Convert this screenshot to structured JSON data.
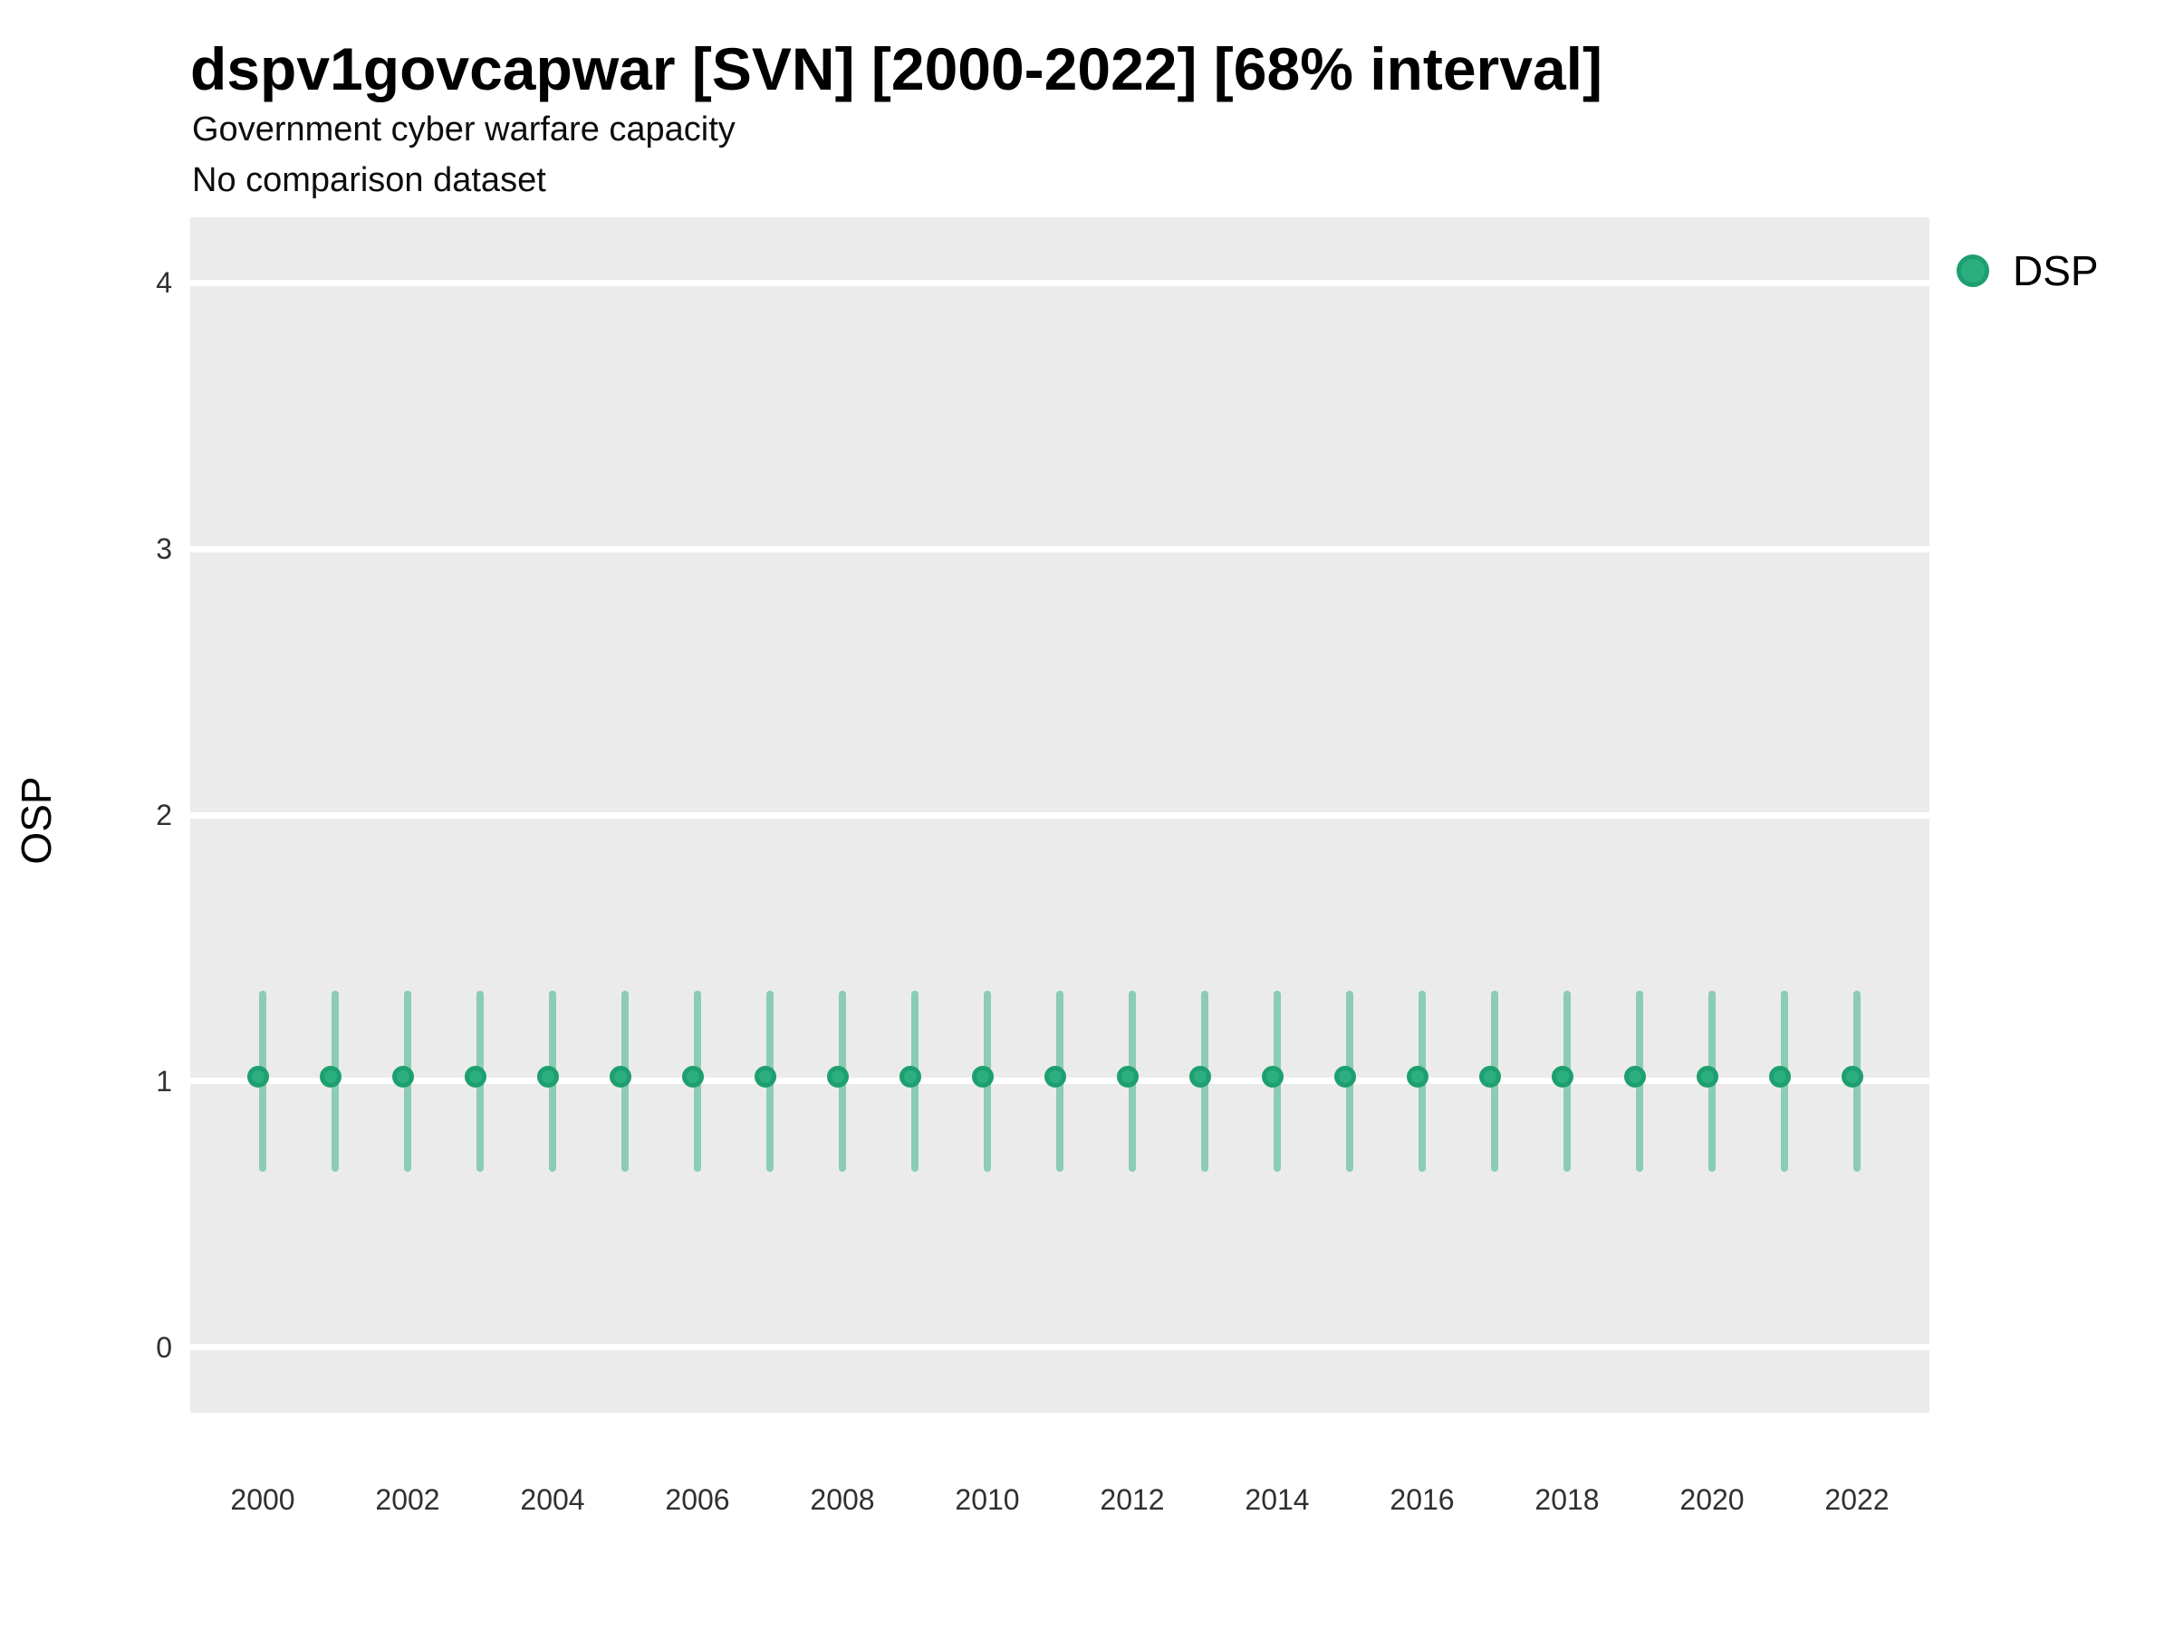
{
  "chart_data": {
    "type": "scatter",
    "title": "dspv1govcapwar [SVN] [2000-2022] [68% interval]",
    "subtitle": "Government cyber warfare capacity",
    "note": "No comparison dataset",
    "xlabel": "",
    "ylabel": "OSP",
    "interval_label": "68% interval",
    "legend": {
      "label": "DSP",
      "position": "right"
    },
    "x": [
      2000,
      2001,
      2002,
      2003,
      2004,
      2005,
      2006,
      2007,
      2008,
      2009,
      2010,
      2011,
      2012,
      2013,
      2014,
      2015,
      2016,
      2017,
      2018,
      2019,
      2020,
      2021,
      2022
    ],
    "series": [
      {
        "name": "DSP",
        "values": [
          1,
          1,
          1,
          1,
          1,
          1,
          1,
          1,
          1,
          1,
          1,
          1,
          1,
          1,
          1,
          1,
          1,
          1,
          1,
          1,
          1,
          1,
          1
        ],
        "interval_low": [
          0.66,
          0.66,
          0.66,
          0.66,
          0.66,
          0.66,
          0.66,
          0.66,
          0.66,
          0.66,
          0.66,
          0.66,
          0.66,
          0.66,
          0.66,
          0.66,
          0.66,
          0.66,
          0.66,
          0.66,
          0.66,
          0.66,
          0.66
        ],
        "interval_high": [
          1.34,
          1.34,
          1.34,
          1.34,
          1.34,
          1.34,
          1.34,
          1.34,
          1.34,
          1.34,
          1.34,
          1.34,
          1.34,
          1.34,
          1.34,
          1.34,
          1.34,
          1.34,
          1.34,
          1.34,
          1.34,
          1.34,
          1.34
        ]
      }
    ],
    "yticks": [
      0,
      1,
      2,
      3,
      4
    ],
    "xticks": [
      2000,
      2002,
      2004,
      2006,
      2008,
      2010,
      2012,
      2014,
      2016,
      2018,
      2020,
      2022
    ],
    "ylim": [
      -0.245,
      4.245
    ],
    "xlim": [
      1999,
      2023
    ],
    "grid": "major-horizontal-white",
    "legend_position": "right"
  },
  "colors": {
    "point_fill": "#2BAE80",
    "point_stroke": "#1E9F70",
    "errorbar": "rgba(43,173,128,0.5)",
    "panel_bg": "#EBEBEB",
    "gridline": "#FFFFFF"
  }
}
